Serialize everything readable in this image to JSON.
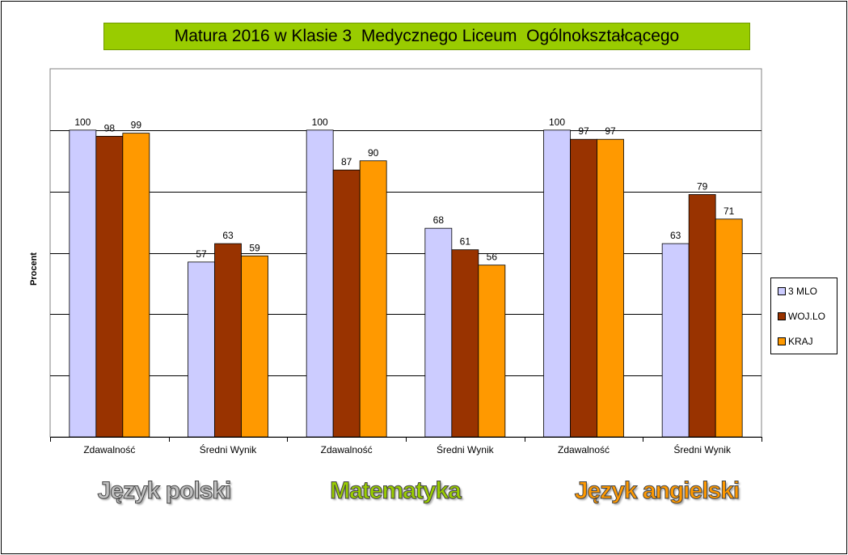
{
  "chart_data": {
    "type": "bar",
    "title": "Matura 2016 w Klasie 3  Medycznego Liceum  Ogólnokształcącego",
    "ylabel": "Procent",
    "xlabel": "",
    "categories": [
      "Zdawalność",
      "Średni Wynik",
      "Zdawalność",
      "Średni Wynik",
      "Zdawalność",
      "Średni Wynik"
    ],
    "series": [
      {
        "name": "3 MLO",
        "color": "#ccccff",
        "values": [
          100,
          57,
          100,
          68,
          100,
          63
        ]
      },
      {
        "name": "WOJ.LO",
        "color": "#993300",
        "values": [
          98,
          63,
          87,
          61,
          97,
          79
        ]
      },
      {
        "name": "KRAJ",
        "color": "#ff9900",
        "values": [
          99,
          59,
          90,
          56,
          97,
          71
        ]
      }
    ],
    "ylim": [
      0,
      120
    ],
    "grid": true,
    "legend_position": "right",
    "groups": [
      {
        "label": "Język polski",
        "color": "#c0c0c0"
      },
      {
        "label": "Matematyka",
        "color": "#99cc00"
      },
      {
        "label": "Język angielski",
        "color": "#ff9900"
      }
    ]
  }
}
